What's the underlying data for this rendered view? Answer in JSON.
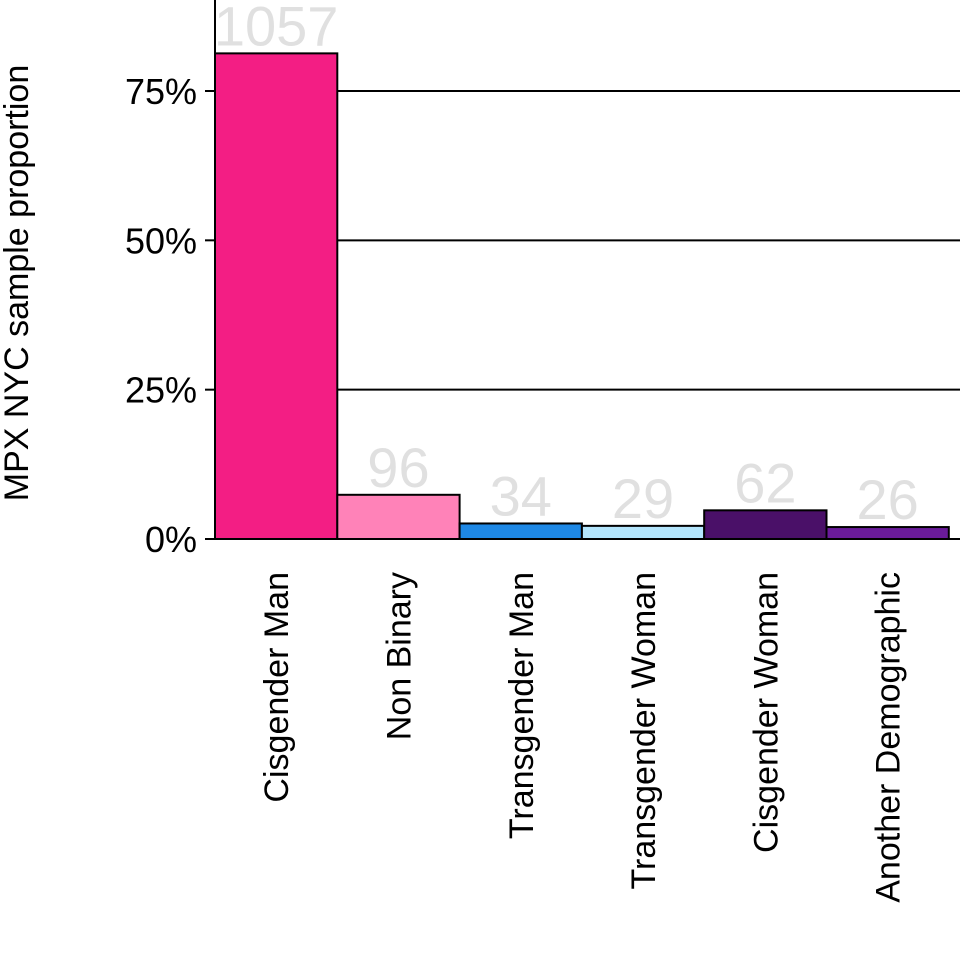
{
  "chart_data": {
    "type": "bar",
    "ylabel": "MPX NYC sample proportion",
    "xlabel": "",
    "ylim": [
      0,
      0.88
    ],
    "yticks": [
      0,
      0.25,
      0.5,
      0.75
    ],
    "ytick_labels": [
      "0%",
      "25%",
      "50%",
      "75%"
    ],
    "grid": "horizontal",
    "categories": [
      "Cisgender Man",
      "Non Binary",
      "Transgender Man",
      "Transgender Woman",
      "Cisgender Woman",
      "Another Demographic"
    ],
    "values": [
      0.813,
      0.074,
      0.026,
      0.022,
      0.048,
      0.02
    ],
    "counts": [
      "1057",
      "96",
      "34",
      "29",
      "62",
      "26"
    ],
    "colors": [
      "#f31e84",
      "#ff82b8",
      "#1e88e5",
      "#b3e5fc",
      "#4a1068",
      "#6a1b9a"
    ]
  }
}
